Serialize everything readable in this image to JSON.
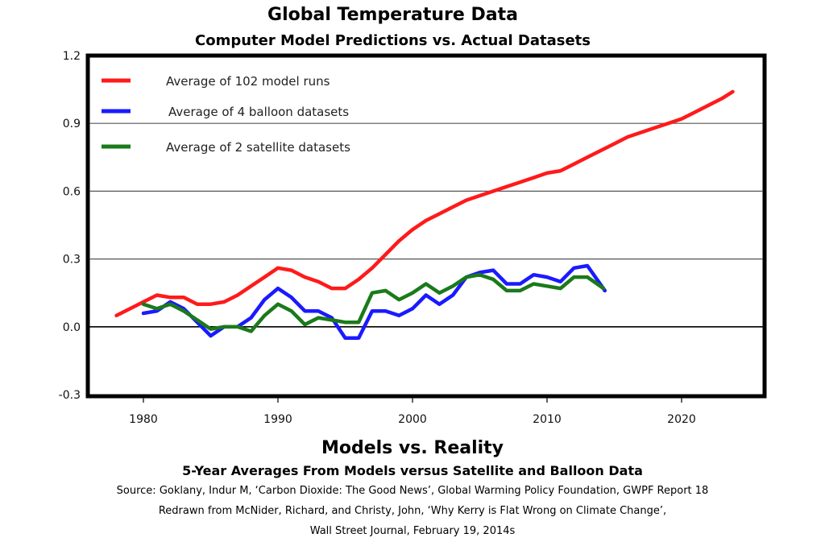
{
  "header": {
    "title": "Global Temperature Data",
    "subtitle": "Computer Model Predictions vs. Actual Datasets"
  },
  "footer": {
    "title": "Models vs. Reality",
    "subtitle": "5-Year Averages From Models versus Satellite and Balloon Data",
    "source_lines": [
      "Source: Goklany, Indur M, ‘Carbon Dioxide: The Good News’, Global Warming Policy Foundation, GWPF Report 18",
      "Redrawn from McNider, Richard, and Christy, John, ‘Why Kerry is Flat Wrong on Climate Change’,",
      "Wall Street Journal, February 19, 2014s"
    ]
  },
  "chart_data": {
    "type": "line",
    "title": "Global Temperature Data",
    "subtitle": "Computer Model Predictions vs. Actual Datasets",
    "xlabel": "",
    "ylabel": "",
    "xlim": [
      1976,
      2026
    ],
    "ylim": [
      -0.3,
      1.2
    ],
    "x_ticks": [
      1980,
      1990,
      2000,
      2010,
      2020
    ],
    "y_ticks": [
      -0.3,
      0.0,
      0.3,
      0.6,
      0.9,
      1.2
    ],
    "y_tick_labels": [
      "-0.3",
      "0.0",
      "0.3",
      "0.6",
      "0.9",
      "1.2"
    ],
    "gridlines_y": [
      0.0,
      0.3,
      0.6,
      0.9
    ],
    "legend_position": "top-left",
    "series": [
      {
        "name": "Average of 102 model runs",
        "color": "#ff1a1a",
        "points": [
          [
            1978,
            0.05
          ],
          [
            1980,
            0.11
          ],
          [
            1981,
            0.14
          ],
          [
            1982,
            0.13
          ],
          [
            1983,
            0.13
          ],
          [
            1984,
            0.1
          ],
          [
            1985,
            0.1
          ],
          [
            1986,
            0.11
          ],
          [
            1987,
            0.14
          ],
          [
            1988,
            0.18
          ],
          [
            1989,
            0.22
          ],
          [
            1990,
            0.26
          ],
          [
            1991,
            0.25
          ],
          [
            1992,
            0.22
          ],
          [
            1993,
            0.2
          ],
          [
            1994,
            0.17
          ],
          [
            1995,
            0.17
          ],
          [
            1996,
            0.21
          ],
          [
            1997,
            0.26
          ],
          [
            1998,
            0.32
          ],
          [
            1999,
            0.38
          ],
          [
            2000,
            0.43
          ],
          [
            2001,
            0.47
          ],
          [
            2002,
            0.5
          ],
          [
            2003,
            0.53
          ],
          [
            2004,
            0.56
          ],
          [
            2005,
            0.58
          ],
          [
            2006,
            0.6
          ],
          [
            2007,
            0.62
          ],
          [
            2008,
            0.64
          ],
          [
            2009,
            0.66
          ],
          [
            2010,
            0.68
          ],
          [
            2011,
            0.69
          ],
          [
            2012,
            0.72
          ],
          [
            2013,
            0.75
          ],
          [
            2014,
            0.78
          ],
          [
            2015,
            0.81
          ],
          [
            2016,
            0.84
          ],
          [
            2017,
            0.86
          ],
          [
            2018,
            0.88
          ],
          [
            2019,
            0.9
          ],
          [
            2020,
            0.92
          ],
          [
            2021,
            0.95
          ],
          [
            2022,
            0.98
          ],
          [
            2023,
            1.01
          ],
          [
            2023.8,
            1.04
          ]
        ]
      },
      {
        "name": "Average of 4 balloon datasets",
        "color": "#1a1aff",
        "points": [
          [
            1980,
            0.06
          ],
          [
            1981,
            0.07
          ],
          [
            1982,
            0.11
          ],
          [
            1983,
            0.08
          ],
          [
            1984,
            0.02
          ],
          [
            1985,
            -0.04
          ],
          [
            1986,
            0.0
          ],
          [
            1987,
            0.0
          ],
          [
            1988,
            0.04
          ],
          [
            1989,
            0.12
          ],
          [
            1990,
            0.17
          ],
          [
            1991,
            0.13
          ],
          [
            1992,
            0.07
          ],
          [
            1993,
            0.07
          ],
          [
            1994,
            0.04
          ],
          [
            1995,
            -0.05
          ],
          [
            1996,
            -0.05
          ],
          [
            1997,
            0.07
          ],
          [
            1998,
            0.07
          ],
          [
            1999,
            0.05
          ],
          [
            2000,
            0.08
          ],
          [
            2001,
            0.14
          ],
          [
            2002,
            0.1
          ],
          [
            2003,
            0.14
          ],
          [
            2004,
            0.22
          ],
          [
            2005,
            0.24
          ],
          [
            2006,
            0.25
          ],
          [
            2007,
            0.19
          ],
          [
            2008,
            0.19
          ],
          [
            2009,
            0.23
          ],
          [
            2010,
            0.22
          ],
          [
            2011,
            0.2
          ],
          [
            2012,
            0.26
          ],
          [
            2013,
            0.27
          ],
          [
            2014.3,
            0.16
          ]
        ]
      },
      {
        "name": "Average of 2 satellite datasets",
        "color": "#1a7a1a",
        "points": [
          [
            1980,
            0.1
          ],
          [
            1981,
            0.08
          ],
          [
            1982,
            0.1
          ],
          [
            1983,
            0.07
          ],
          [
            1984,
            0.03
          ],
          [
            1985,
            -0.01
          ],
          [
            1986,
            0.0
          ],
          [
            1987,
            0.0
          ],
          [
            1988,
            -0.02
          ],
          [
            1989,
            0.05
          ],
          [
            1990,
            0.1
          ],
          [
            1991,
            0.07
          ],
          [
            1992,
            0.01
          ],
          [
            1993,
            0.04
          ],
          [
            1994,
            0.03
          ],
          [
            1995,
            0.02
          ],
          [
            1996,
            0.02
          ],
          [
            1997,
            0.15
          ],
          [
            1998,
            0.16
          ],
          [
            1999,
            0.12
          ],
          [
            2000,
            0.15
          ],
          [
            2001,
            0.19
          ],
          [
            2002,
            0.15
          ],
          [
            2003,
            0.18
          ],
          [
            2004,
            0.22
          ],
          [
            2005,
            0.23
          ],
          [
            2006,
            0.21
          ],
          [
            2007,
            0.16
          ],
          [
            2008,
            0.16
          ],
          [
            2009,
            0.19
          ],
          [
            2010,
            0.18
          ],
          [
            2011,
            0.17
          ],
          [
            2012,
            0.22
          ],
          [
            2013,
            0.22
          ],
          [
            2014.2,
            0.17
          ]
        ]
      }
    ]
  }
}
